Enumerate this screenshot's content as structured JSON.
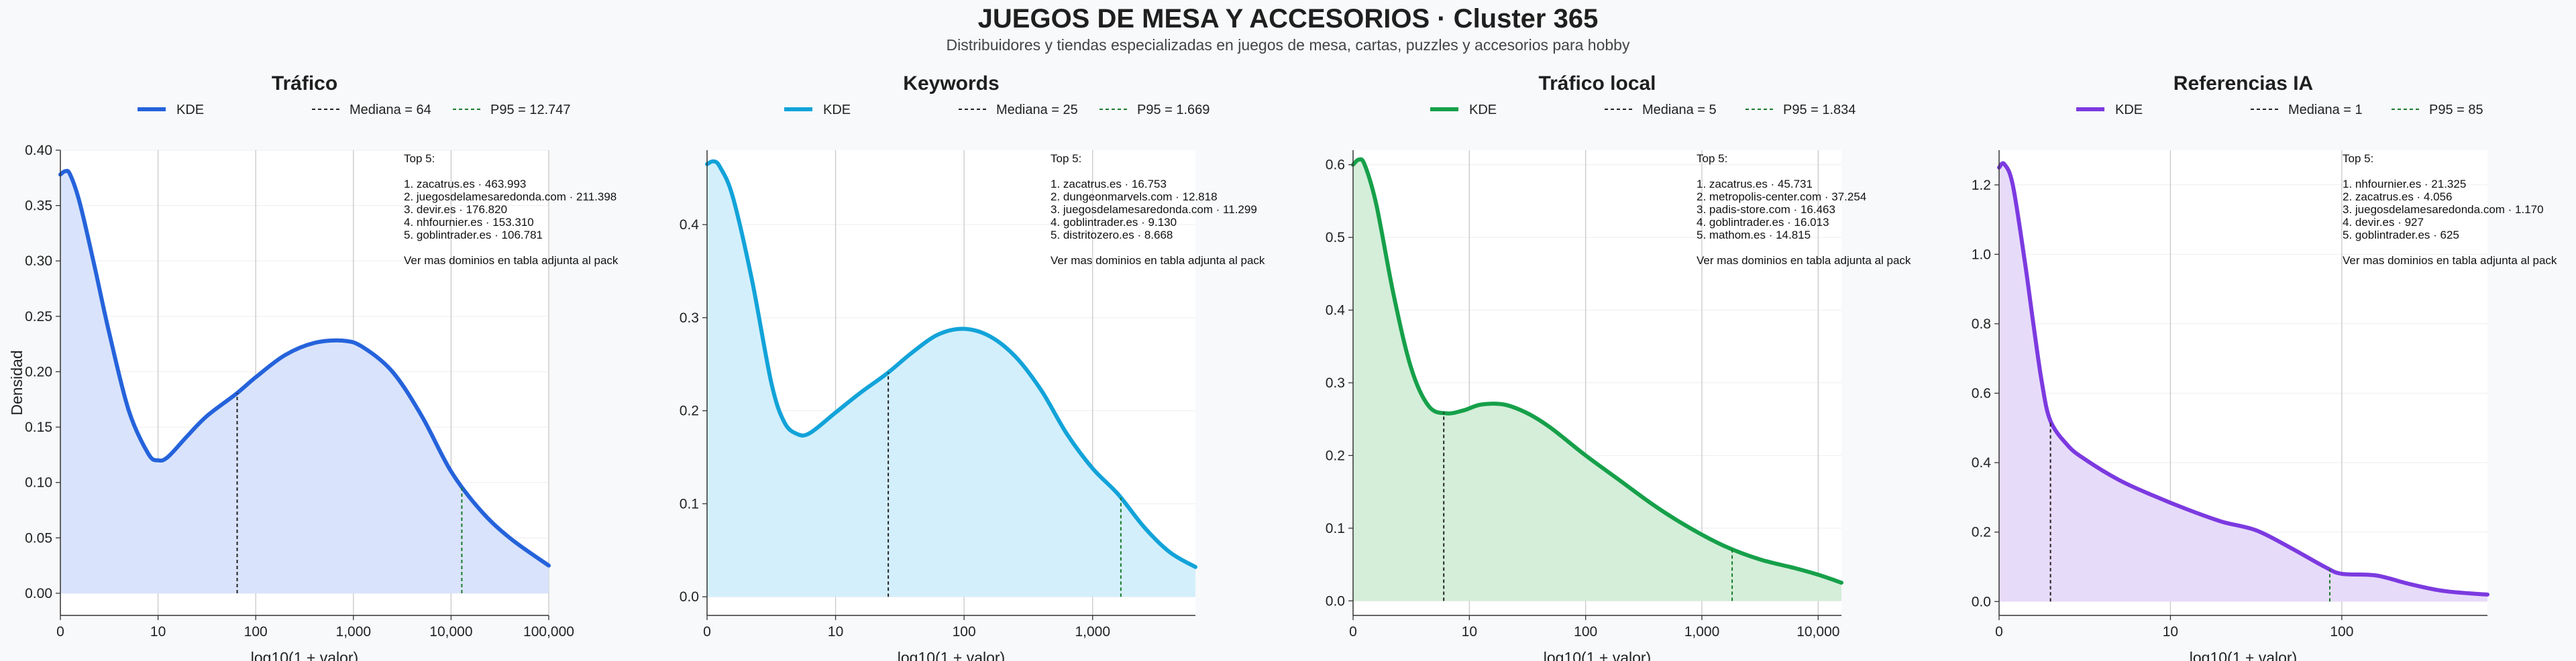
{
  "title": "JUEGOS DE MESA Y ACCESORIOS · Cluster 365",
  "subtitle": "Distribuidores y tiendas especializadas en juegos de mesa, cartas, puzzles y accesorios para hobby",
  "colors": {
    "kde": [
      "#2563db",
      "#12a3d9",
      "#16a04a",
      "#7c3ae0"
    ],
    "fill": [
      "#d9e3fb",
      "#d3effb",
      "#d4eed9",
      "#e7dbfa"
    ],
    "median": "#222222",
    "p95": "#1a7a2a"
  },
  "chart_data": [
    {
      "type": "area",
      "title": "Tráfico",
      "xlabel": "log10(1 + valor)",
      "ylabel": "Densidad",
      "xlim": [
        0,
        5
      ],
      "ylim": [
        -0.02,
        0.4
      ],
      "xticks": [
        0,
        1,
        2,
        3,
        4,
        5
      ],
      "xticklabels": [
        "0",
        "10",
        "100",
        "1,000",
        "10,000",
        "100,000"
      ],
      "yticks": [
        0,
        0.05,
        0.1,
        0.15,
        0.2,
        0.25,
        0.3,
        0.35,
        0.4
      ],
      "yticklabels": [
        "0.00",
        "0.05",
        "0.10",
        "0.15",
        "0.20",
        "0.25",
        "0.30",
        "0.35",
        "0.40"
      ],
      "legend": {
        "kde": "KDE",
        "median": "Mediana = 64",
        "p95": "P95 = 12.747"
      },
      "median_x": 1.81,
      "p95_x": 4.11,
      "annotation": [
        "Top 5:",
        "",
        "1. zacatrus.es · 463.993",
        "2. juegosdelamesaredonda.com · 211.398",
        "3. devir.es · 176.820",
        "4. nhfournier.es · 153.310",
        "5. goblintrader.es · 106.781",
        "",
        "Ver mas dominios en tabla adjunta al pack"
      ],
      "x": [
        0,
        0.05,
        0.1,
        0.2,
        0.35,
        0.5,
        0.7,
        0.9,
        1.0,
        1.1,
        1.3,
        1.5,
        1.8,
        2.0,
        2.3,
        2.6,
        2.9,
        3.1,
        3.4,
        3.7,
        4.0,
        4.3,
        4.6,
        5.0
      ],
      "y": [
        0.378,
        0.381,
        0.378,
        0.352,
        0.295,
        0.235,
        0.165,
        0.126,
        0.12,
        0.123,
        0.142,
        0.16,
        0.18,
        0.195,
        0.215,
        0.226,
        0.228,
        0.222,
        0.2,
        0.16,
        0.11,
        0.075,
        0.05,
        0.025
      ]
    },
    {
      "type": "area",
      "title": "Keywords",
      "xlabel": "log10(1 + valor)",
      "ylabel": "",
      "xlim": [
        0,
        3.8
      ],
      "ylim": [
        -0.02,
        0.48
      ],
      "xticks": [
        0,
        1,
        2,
        3
      ],
      "xticklabels": [
        "0",
        "10",
        "100",
        "1,000"
      ],
      "yticks": [
        0,
        0.1,
        0.2,
        0.3,
        0.4
      ],
      "yticklabels": [
        "0.0",
        "0.1",
        "0.2",
        "0.3",
        "0.4"
      ],
      "legend": {
        "kde": "KDE",
        "median": "Mediana = 25",
        "p95": "P95 = 1.669"
      },
      "median_x": 1.41,
      "p95_x": 3.22,
      "annotation": [
        "Top 5:",
        "",
        "1. zacatrus.es · 16.753",
        "2. dungeonmarvels.com · 12.818",
        "3. juegosdelamesaredonda.com · 11.299",
        "4. goblintrader.es · 9.130",
        "5. distritozero.es · 8.668",
        "",
        "Ver mas dominios en tabla adjunta al pack"
      ],
      "x": [
        0,
        0.05,
        0.1,
        0.2,
        0.35,
        0.5,
        0.6,
        0.7,
        0.8,
        1.0,
        1.2,
        1.4,
        1.6,
        1.8,
        2.0,
        2.2,
        2.4,
        2.6,
        2.8,
        3.0,
        3.2,
        3.4,
        3.6,
        3.8
      ],
      "y": [
        0.465,
        0.468,
        0.462,
        0.43,
        0.34,
        0.23,
        0.188,
        0.175,
        0.176,
        0.198,
        0.22,
        0.24,
        0.263,
        0.282,
        0.288,
        0.28,
        0.258,
        0.222,
        0.175,
        0.138,
        0.11,
        0.075,
        0.048,
        0.032
      ]
    },
    {
      "type": "area",
      "title": "Tráfico local",
      "xlabel": "log10(1 + valor)",
      "ylabel": "",
      "xlim": [
        0,
        4.2
      ],
      "ylim": [
        -0.02,
        0.62
      ],
      "xticks": [
        0,
        1,
        2,
        3,
        4
      ],
      "xticklabels": [
        "0",
        "10",
        "100",
        "1,000",
        "10,000"
      ],
      "yticks": [
        0,
        0.1,
        0.2,
        0.3,
        0.4,
        0.5,
        0.6
      ],
      "yticklabels": [
        "0.0",
        "0.1",
        "0.2",
        "0.3",
        "0.4",
        "0.5",
        "0.6"
      ],
      "legend": {
        "kde": "KDE",
        "median": "Mediana = 5",
        "p95": "P95 = 1.834"
      },
      "median_x": 0.78,
      "p95_x": 3.26,
      "annotation": [
        "Top 5:",
        "",
        "1. zacatrus.es · 45.731",
        "2. metropolis-center.com · 37.254",
        "3. padis-store.com · 16.463",
        "4. goblintrader.es · 16.013",
        "5. mathom.es · 14.815",
        "",
        "Ver mas dominios en tabla adjunta al pack"
      ],
      "x": [
        0,
        0.05,
        0.1,
        0.2,
        0.35,
        0.5,
        0.65,
        0.8,
        0.95,
        1.1,
        1.3,
        1.5,
        1.7,
        2.0,
        2.3,
        2.6,
        2.9,
        3.2,
        3.5,
        3.8,
        4.0,
        4.2
      ],
      "y": [
        0.6,
        0.607,
        0.6,
        0.545,
        0.42,
        0.32,
        0.268,
        0.258,
        0.262,
        0.27,
        0.27,
        0.258,
        0.238,
        0.2,
        0.165,
        0.13,
        0.1,
        0.075,
        0.057,
        0.045,
        0.036,
        0.025
      ]
    },
    {
      "type": "area",
      "title": "Referencias IA",
      "xlabel": "log10(1 + valor)",
      "ylabel": "",
      "xlim": [
        0,
        2.85
      ],
      "ylim": [
        -0.04,
        1.3
      ],
      "xticks": [
        0,
        1,
        2
      ],
      "xticklabels": [
        "0",
        "10",
        "100"
      ],
      "yticks": [
        0,
        0.2,
        0.4,
        0.6,
        0.8,
        1.0,
        1.2
      ],
      "yticklabels": [
        "0.0",
        "0.2",
        "0.4",
        "0.6",
        "0.8",
        "1.0",
        "1.2"
      ],
      "legend": {
        "kde": "KDE",
        "median": "Mediana = 1",
        "p95": "P95 = 85"
      },
      "median_x": 0.3,
      "p95_x": 1.93,
      "annotation": [
        "Top 5:",
        "",
        "1. nhfournier.es · 21.325",
        "2. zacatrus.es · 4.056",
        "3. juegosdelamesaredonda.com · 1.170",
        "4. devir.es · 927",
        "5. goblintrader.es · 625",
        "",
        "Ver mas dominios en tabla adjunta al pack"
      ],
      "x": [
        0,
        0.03,
        0.08,
        0.15,
        0.2,
        0.25,
        0.3,
        0.4,
        0.5,
        0.7,
        0.9,
        1.1,
        1.3,
        1.5,
        1.7,
        1.9,
        2.0,
        2.2,
        2.4,
        2.6,
        2.85
      ],
      "y": [
        1.25,
        1.26,
        1.2,
        0.98,
        0.8,
        0.63,
        0.52,
        0.45,
        0.41,
        0.35,
        0.305,
        0.265,
        0.23,
        0.205,
        0.155,
        0.1,
        0.08,
        0.075,
        0.05,
        0.03,
        0.02
      ]
    }
  ]
}
